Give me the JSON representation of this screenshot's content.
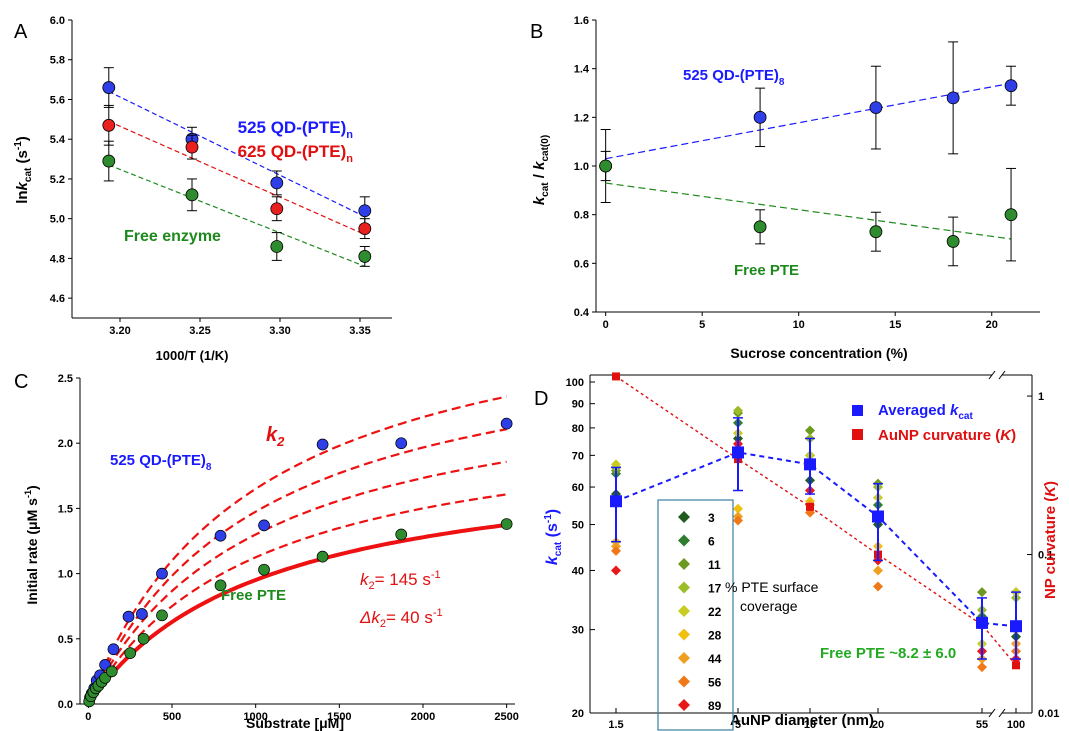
{
  "chart_data": [
    {
      "panel": "A",
      "type": "scatter",
      "xlabel": "1000/T (1/K)",
      "ylabel_pre": "ln",
      "ylabel_var": "k",
      "ylabel_sub": "cat",
      "ylabel_unit": " (s",
      "ylabel_sup": "-1",
      "ylabel_end": ")",
      "xlim": [
        3.17,
        3.37
      ],
      "ylim": [
        4.5,
        6.0
      ],
      "xticks": [
        3.2,
        3.25,
        3.3,
        3.35
      ],
      "xtick_labels": [
        "3.20",
        "3.25",
        "3.30",
        "3.35"
      ],
      "yticks": [
        4.6,
        4.8,
        5.0,
        5.2,
        5.4,
        5.6,
        5.8,
        6.0
      ],
      "ytick_labels": [
        "4.6",
        "4.8",
        "5.0",
        "5.2",
        "5.4",
        "5.6",
        "5.8",
        "6.0"
      ],
      "series": [
        {
          "label_main": "525 QD-(PTE)",
          "label_sub": "n",
          "color": "#1a1aff",
          "fill": "#2f3fe8",
          "x": [
            3.193,
            3.245,
            3.298,
            3.353
          ],
          "y": [
            5.66,
            5.4,
            5.18,
            5.04
          ],
          "err": [
            0.1,
            0.06,
            0.06,
            0.07
          ],
          "fit": [
            [
              3.193,
              5.64
            ],
            [
              3.353,
              5.01
            ]
          ]
        },
        {
          "label_main": "625 QD-(PTE)",
          "label_sub": "n",
          "color": "#e01010",
          "fill": "#e82020",
          "x": [
            3.193,
            3.245,
            3.298,
            3.353
          ],
          "y": [
            5.47,
            5.36,
            5.05,
            4.95
          ],
          "err": [
            0.1,
            0.06,
            0.06,
            0.05
          ],
          "fit": [
            [
              3.193,
              5.49
            ],
            [
              3.353,
              4.92
            ]
          ]
        },
        {
          "label_main": "Free enzyme",
          "label_sub": "",
          "color": "#1e8a1e",
          "fill": "#2e8b2e",
          "x": [
            3.193,
            3.245,
            3.298,
            3.353
          ],
          "y": [
            5.29,
            5.12,
            4.86,
            4.81
          ],
          "err": [
            0.1,
            0.08,
            0.07,
            0.05
          ],
          "fit": [
            [
              3.193,
              5.27
            ],
            [
              3.353,
              4.76
            ]
          ]
        }
      ]
    },
    {
      "panel": "B",
      "type": "scatter",
      "xlabel": "Sucrose concentration (%)",
      "ylabel_var1": "k",
      "ylabel_sub1": "cat",
      "ylabel_mid": " / ",
      "ylabel_var2": "k",
      "ylabel_sub2": "cat(0)",
      "xlim": [
        -0.5,
        22.5
      ],
      "ylim": [
        0.4,
        1.6
      ],
      "xticks": [
        0,
        5,
        10,
        15,
        20
      ],
      "xtick_labels": [
        "0",
        "5",
        "10",
        "15",
        "20"
      ],
      "yticks": [
        0.4,
        0.6,
        0.8,
        1.0,
        1.2,
        1.4,
        1.6
      ],
      "ytick_labels": [
        "0.4",
        "0.6",
        "0.8",
        "1.0",
        "1.2",
        "1.4",
        "1.6"
      ],
      "series": [
        {
          "label_main": "525 QD-(PTE)",
          "label_sub": "8",
          "color": "#1a1aff",
          "fill": "#2f3fe8",
          "x": [
            0,
            8,
            14,
            18,
            21
          ],
          "y": [
            1.0,
            1.2,
            1.24,
            1.28,
            1.33
          ],
          "err": [
            0.15,
            0.12,
            0.17,
            0.23,
            0.08
          ],
          "fit": [
            [
              0,
              1.03
            ],
            [
              21,
              1.34
            ]
          ]
        },
        {
          "label_main": "Free PTE",
          "label_sub": "",
          "color": "#1e8a1e",
          "fill": "#2e8b2e",
          "x": [
            0,
            8,
            14,
            18,
            21
          ],
          "y": [
            1.0,
            0.75,
            0.73,
            0.69,
            0.8
          ],
          "err": [
            0.06,
            0.07,
            0.08,
            0.1,
            0.19
          ],
          "fit": [
            [
              0,
              0.93
            ],
            [
              21,
              0.7
            ]
          ]
        }
      ]
    },
    {
      "panel": "C",
      "type": "scatter",
      "xlabel": "Substrate [μM]",
      "ylabel": "Initial rate (μM s",
      "ylabel_sup": "-1",
      "ylabel_end": ")",
      "xlim": [
        -50,
        2550
      ],
      "ylim": [
        0,
        2.5
      ],
      "xticks": [
        0,
        500,
        1000,
        1500,
        2000,
        2500
      ],
      "xtick_labels": [
        "0",
        "500",
        "1000",
        "1500",
        "2000",
        "2500"
      ],
      "yticks": [
        0,
        0.5,
        1.0,
        1.5,
        2.0,
        2.5
      ],
      "ytick_labels": [
        "0.0",
        "0.5",
        "1.0",
        "1.5",
        "2.0",
        "2.5"
      ],
      "series": [
        {
          "label_main": "525 QD-(PTE)",
          "label_sub": "8",
          "color": "#1a1aff",
          "fill": "#2f3fe8",
          "x": [
            10,
            20,
            35,
            50,
            70,
            100,
            150,
            240,
            320,
            440,
            790,
            1050,
            1400,
            1870,
            2500
          ],
          "y": [
            0.05,
            0.08,
            0.12,
            0.18,
            0.22,
            0.3,
            0.42,
            0.67,
            0.69,
            1.0,
            1.29,
            1.37,
            1.99,
            2.0,
            2.15
          ]
        },
        {
          "label_main": "Free PTE",
          "label_sub": "",
          "color": "#1e8a1e",
          "fill": "#2e8b2e",
          "x": [
            5,
            15,
            30,
            45,
            60,
            80,
            100,
            140,
            250,
            330,
            440,
            790,
            1050,
            1400,
            1870,
            2500
          ],
          "y": [
            0.02,
            0.06,
            0.09,
            0.12,
            0.14,
            0.17,
            0.2,
            0.25,
            0.39,
            0.5,
            0.68,
            0.91,
            1.03,
            1.13,
            1.3,
            1.38
          ]
        }
      ],
      "mm_fits": [
        {
          "vmax": 1.95,
          "km": 1050,
          "style": "solid"
        },
        {
          "vmax": 2.25,
          "km": 1000,
          "style": "dashed"
        },
        {
          "vmax": 2.6,
          "km": 1000,
          "style": "dashed"
        },
        {
          "vmax": 2.95,
          "km": 1000,
          "style": "dashed"
        },
        {
          "vmax": 3.3,
          "km": 1000,
          "style": "dashed"
        }
      ],
      "annotations": {
        "k2_label": "k",
        "k2_sub": "2",
        "k2_value_pre": "k",
        "k2_value_sub": "2",
        "k2_value": "= 145 s",
        "k2_value_sup": "-1",
        "dk2_pre": "Δk",
        "dk2_sub": "2",
        "dk2_value": "= 40 s",
        "dk2_sup": "-1"
      }
    },
    {
      "panel": "D",
      "type": "scatter",
      "xlabel": "AuNP diameter (nm)",
      "ylabel_var": "k",
      "ylabel_sub": "cat",
      "ylabel_unit": " (s",
      "ylabel_sup": "-1",
      "ylabel_end": ")",
      "y2label": "NP curvature (",
      "y2label_var": "K",
      "y2label_end": ")",
      "x_categories": [
        "1.5",
        "5",
        "10",
        "20",
        "55",
        "100"
      ],
      "yscale": "log",
      "ylim": [
        20,
        100
      ],
      "yticks": [
        20,
        30,
        40,
        50,
        60,
        70,
        80,
        90,
        100
      ],
      "ytick_labels": [
        "20",
        "30",
        "40",
        "50",
        "60",
        "70",
        "80",
        "90",
        "100"
      ],
      "y2scale": "log",
      "y2lim": [
        0.01,
        1.3
      ],
      "y2ticks": [
        0.01,
        0.1,
        1
      ],
      "y2tick_labels": [
        "0.01",
        "0.1",
        "1"
      ],
      "averaged_kcat": {
        "label_main": "Averaged ",
        "label_var": "k",
        "label_sub": "cat",
        "color": "#1a1aff",
        "y": [
          56,
          71,
          67,
          52,
          31,
          30.5
        ],
        "err_lo": [
          46,
          59,
          58,
          42,
          26,
          26
        ],
        "err_hi": [
          66,
          84,
          76,
          61,
          35,
          36
        ]
      },
      "curvature": {
        "label_main": "AuNP curvature (",
        "label_var": "K",
        "label_end": ")",
        "color": "#e01010",
        "y": [
          1.33,
          0.4,
          0.2,
          0.1,
          0.036,
          0.02
        ]
      },
      "coverage_legend": {
        "values": [
          "3",
          "6",
          "11",
          "17",
          "22",
          "28",
          "44",
          "56",
          "89"
        ],
        "colors": [
          "#1f5a1f",
          "#2e7d2e",
          "#6b9a1e",
          "#9cbc28",
          "#c8cc20",
          "#f0c010",
          "#f0a020",
          "#f07818",
          "#e81818"
        ],
        "caption1": "% PTE surface",
        "caption2": "coverage"
      },
      "coverage_points": [
        [
          58,
          64,
          65,
          66,
          67,
          46,
          45,
          44,
          40
        ],
        [
          76,
          82,
          86,
          87,
          78,
          54,
          52,
          51,
          74
        ],
        [
          62,
          70,
          79,
          76,
          70,
          56,
          55,
          53,
          59
        ],
        [
          50,
          55,
          61,
          60,
          57,
          45,
          40,
          37,
          42
        ],
        [
          31,
          32,
          36,
          33,
          28,
          27,
          26,
          25,
          27
        ],
        [
          29,
          30,
          36,
          35,
          36,
          30,
          28,
          27,
          26
        ]
      ],
      "free_pte_text": "Free PTE ~8.2 ± 6.0"
    }
  ],
  "panel_letters": [
    "A",
    "B",
    "C",
    "D"
  ]
}
